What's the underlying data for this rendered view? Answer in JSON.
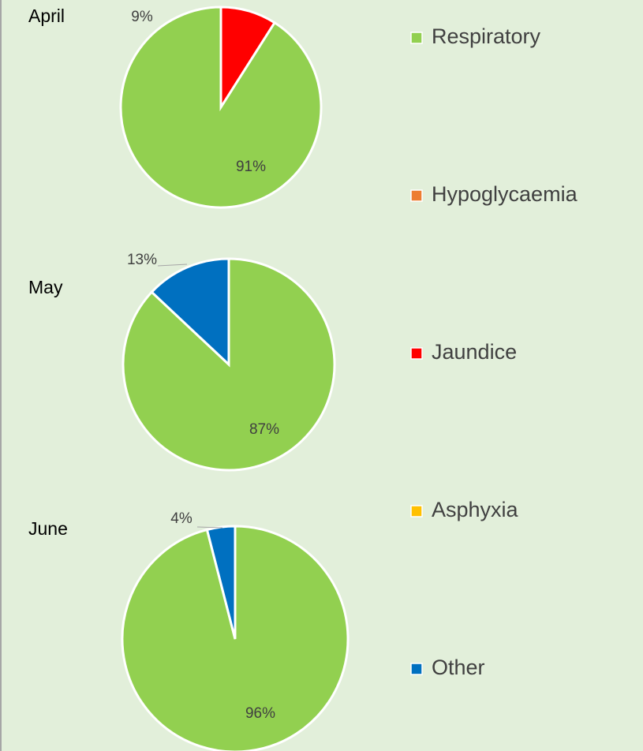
{
  "legend": [
    {
      "name": "Respiratory",
      "color": "#92d050"
    },
    {
      "name": "Hypoglycaemia",
      "color": "#ed7d31"
    },
    {
      "name": "Jaundice",
      "color": "#ff0000"
    },
    {
      "name": "Asphyxia",
      "color": "#ffc000"
    },
    {
      "name": "Other",
      "color": "#0070c0"
    }
  ],
  "chart_data": [
    {
      "type": "pie",
      "title": "April",
      "categories": [
        "Jaundice",
        "Respiratory"
      ],
      "values": [
        9,
        91
      ],
      "value_labels": [
        "9%",
        "91%"
      ]
    },
    {
      "type": "pie",
      "title": "May",
      "categories": [
        "Respiratory",
        "Other"
      ],
      "values": [
        87,
        13
      ],
      "value_labels": [
        "87%",
        "13%"
      ]
    },
    {
      "type": "pie",
      "title": "June",
      "categories": [
        "Respiratory",
        "Other"
      ],
      "values": [
        96,
        4
      ],
      "value_labels": [
        "96%",
        "4%"
      ]
    }
  ]
}
